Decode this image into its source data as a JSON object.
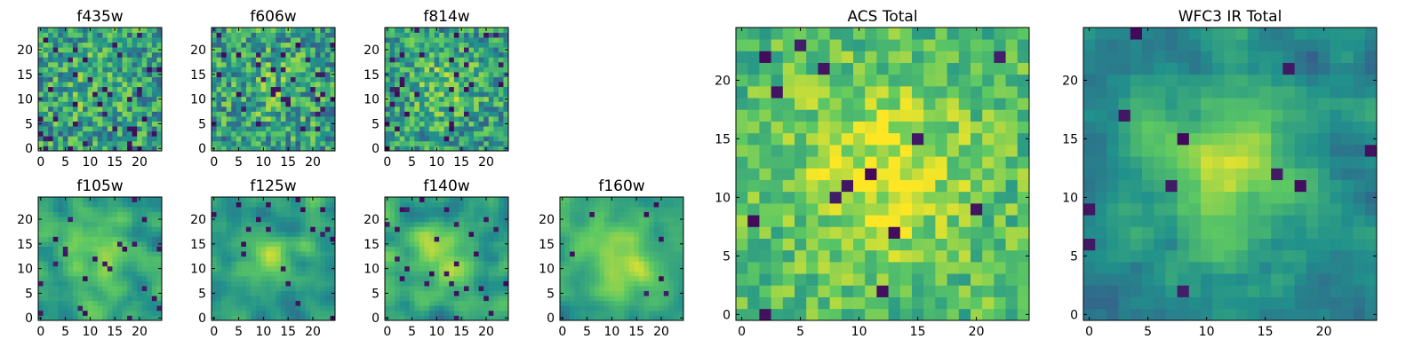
{
  "figure": {
    "colormap": [
      "#440154",
      "#3b528b",
      "#21918c",
      "#5ec962",
      "#fde725"
    ],
    "frame_color": "#000000"
  },
  "chart_data": [
    {
      "type": "heatmap",
      "title": "f435w",
      "grid_size": 25,
      "xlim": [
        -0.5,
        24.5
      ],
      "ylim": [
        -0.5,
        24.5
      ],
      "xticks": [
        0,
        5,
        10,
        15,
        20
      ],
      "yticks": [
        0,
        5,
        10,
        15,
        20
      ],
      "xtick_labels": [
        "0",
        "5",
        "10",
        "15",
        "20"
      ],
      "ytick_labels": [
        "0",
        "5",
        "10",
        "15",
        "20"
      ],
      "smoothness": 0,
      "noise": 0.55,
      "center_strength": 0.1,
      "outlier_rate": 0.05
    },
    {
      "type": "heatmap",
      "title": "f606w",
      "grid_size": 25,
      "xlim": [
        -0.5,
        24.5
      ],
      "ylim": [
        -0.5,
        24.5
      ],
      "xticks": [
        0,
        5,
        10,
        15,
        20
      ],
      "yticks": [
        0,
        5,
        10,
        15,
        20
      ],
      "xtick_labels": [
        "0",
        "5",
        "10",
        "15",
        "20"
      ],
      "ytick_labels": [
        "0",
        "5",
        "10",
        "15",
        "20"
      ],
      "smoothness": 0,
      "noise": 0.55,
      "center_strength": 0.12,
      "outlier_rate": 0.05
    },
    {
      "type": "heatmap",
      "title": "f814w",
      "grid_size": 25,
      "xlim": [
        -0.5,
        24.5
      ],
      "ylim": [
        -0.5,
        24.5
      ],
      "xticks": [
        0,
        5,
        10,
        15,
        20
      ],
      "yticks": [
        0,
        5,
        10,
        15,
        20
      ],
      "xtick_labels": [
        "0",
        "5",
        "10",
        "15",
        "20"
      ],
      "ytick_labels": [
        "0",
        "5",
        "10",
        "15",
        "20"
      ],
      "smoothness": 0,
      "noise": 0.5,
      "center_strength": 0.18,
      "outlier_rate": 0.05
    },
    {
      "type": "heatmap",
      "title": "f105w",
      "grid_size": 25,
      "xlim": [
        -0.5,
        24.5
      ],
      "ylim": [
        -0.5,
        24.5
      ],
      "xticks": [
        0,
        5,
        10,
        15,
        20
      ],
      "yticks": [
        0,
        5,
        10,
        15,
        20
      ],
      "xtick_labels": [
        "0",
        "5",
        "10",
        "15",
        "20"
      ],
      "ytick_labels": [
        "0",
        "5",
        "10",
        "15",
        "20"
      ],
      "smoothness": 2,
      "noise": 0.4,
      "center_strength": 0.3,
      "outlier_rate": 0.03
    },
    {
      "type": "heatmap",
      "title": "f125w",
      "grid_size": 25,
      "xlim": [
        -0.5,
        24.5
      ],
      "ylim": [
        -0.5,
        24.5
      ],
      "xticks": [
        0,
        5,
        10,
        15,
        20
      ],
      "yticks": [
        0,
        5,
        10,
        15,
        20
      ],
      "xtick_labels": [
        "0",
        "5",
        "10",
        "15",
        "20"
      ],
      "ytick_labels": [
        "0",
        "5",
        "10",
        "15",
        "20"
      ],
      "smoothness": 2,
      "noise": 0.45,
      "center_strength": 0.25,
      "outlier_rate": 0.04
    },
    {
      "type": "heatmap",
      "title": "f140w",
      "grid_size": 25,
      "xlim": [
        -0.5,
        24.5
      ],
      "ylim": [
        -0.5,
        24.5
      ],
      "xticks": [
        0,
        5,
        10,
        15,
        20
      ],
      "yticks": [
        0,
        5,
        10,
        15,
        20
      ],
      "xtick_labels": [
        "0",
        "5",
        "10",
        "15",
        "20"
      ],
      "ytick_labels": [
        "0",
        "5",
        "10",
        "15",
        "20"
      ],
      "smoothness": 2,
      "noise": 0.45,
      "center_strength": 0.25,
      "outlier_rate": 0.04
    },
    {
      "type": "heatmap",
      "title": "f160w",
      "grid_size": 25,
      "xlim": [
        -0.5,
        24.5
      ],
      "ylim": [
        -0.5,
        24.5
      ],
      "xticks": [
        0,
        5,
        10,
        15,
        20
      ],
      "yticks": [
        0,
        5,
        10,
        15,
        20
      ],
      "xtick_labels": [
        "0",
        "5",
        "10",
        "15",
        "20"
      ],
      "ytick_labels": [
        "0",
        "5",
        "10",
        "15",
        "20"
      ],
      "smoothness": 2,
      "noise": 0.35,
      "center_strength": 0.35,
      "outlier_rate": 0.02
    },
    {
      "type": "heatmap",
      "title": "ACS Total",
      "grid_size": 25,
      "xlim": [
        -0.5,
        24.5
      ],
      "ylim": [
        -0.5,
        24.5
      ],
      "xticks": [
        0,
        5,
        10,
        15,
        20
      ],
      "yticks": [
        0,
        5,
        10,
        15,
        20
      ],
      "xtick_labels": [
        "0",
        "5",
        "10",
        "15",
        "20"
      ],
      "ytick_labels": [
        "0",
        "5",
        "10",
        "15",
        "20"
      ],
      "smoothness": 0,
      "noise": 0.35,
      "center_strength": 0.25,
      "outlier_rate": 0.015,
      "bias": 0.15
    },
    {
      "type": "heatmap",
      "title": "WFC3 IR Total",
      "grid_size": 25,
      "xlim": [
        -0.5,
        24.5
      ],
      "ylim": [
        -0.5,
        24.5
      ],
      "xticks": [
        0,
        5,
        10,
        15,
        20
      ],
      "yticks": [
        0,
        5,
        10,
        15,
        20
      ],
      "xtick_labels": [
        "0",
        "5",
        "10",
        "15",
        "20"
      ],
      "ytick_labels": [
        "0",
        "5",
        "10",
        "15",
        "20"
      ],
      "smoothness": 1,
      "noise": 0.35,
      "center_strength": 0.45,
      "outlier_rate": 0.02,
      "bias": -0.1
    }
  ]
}
